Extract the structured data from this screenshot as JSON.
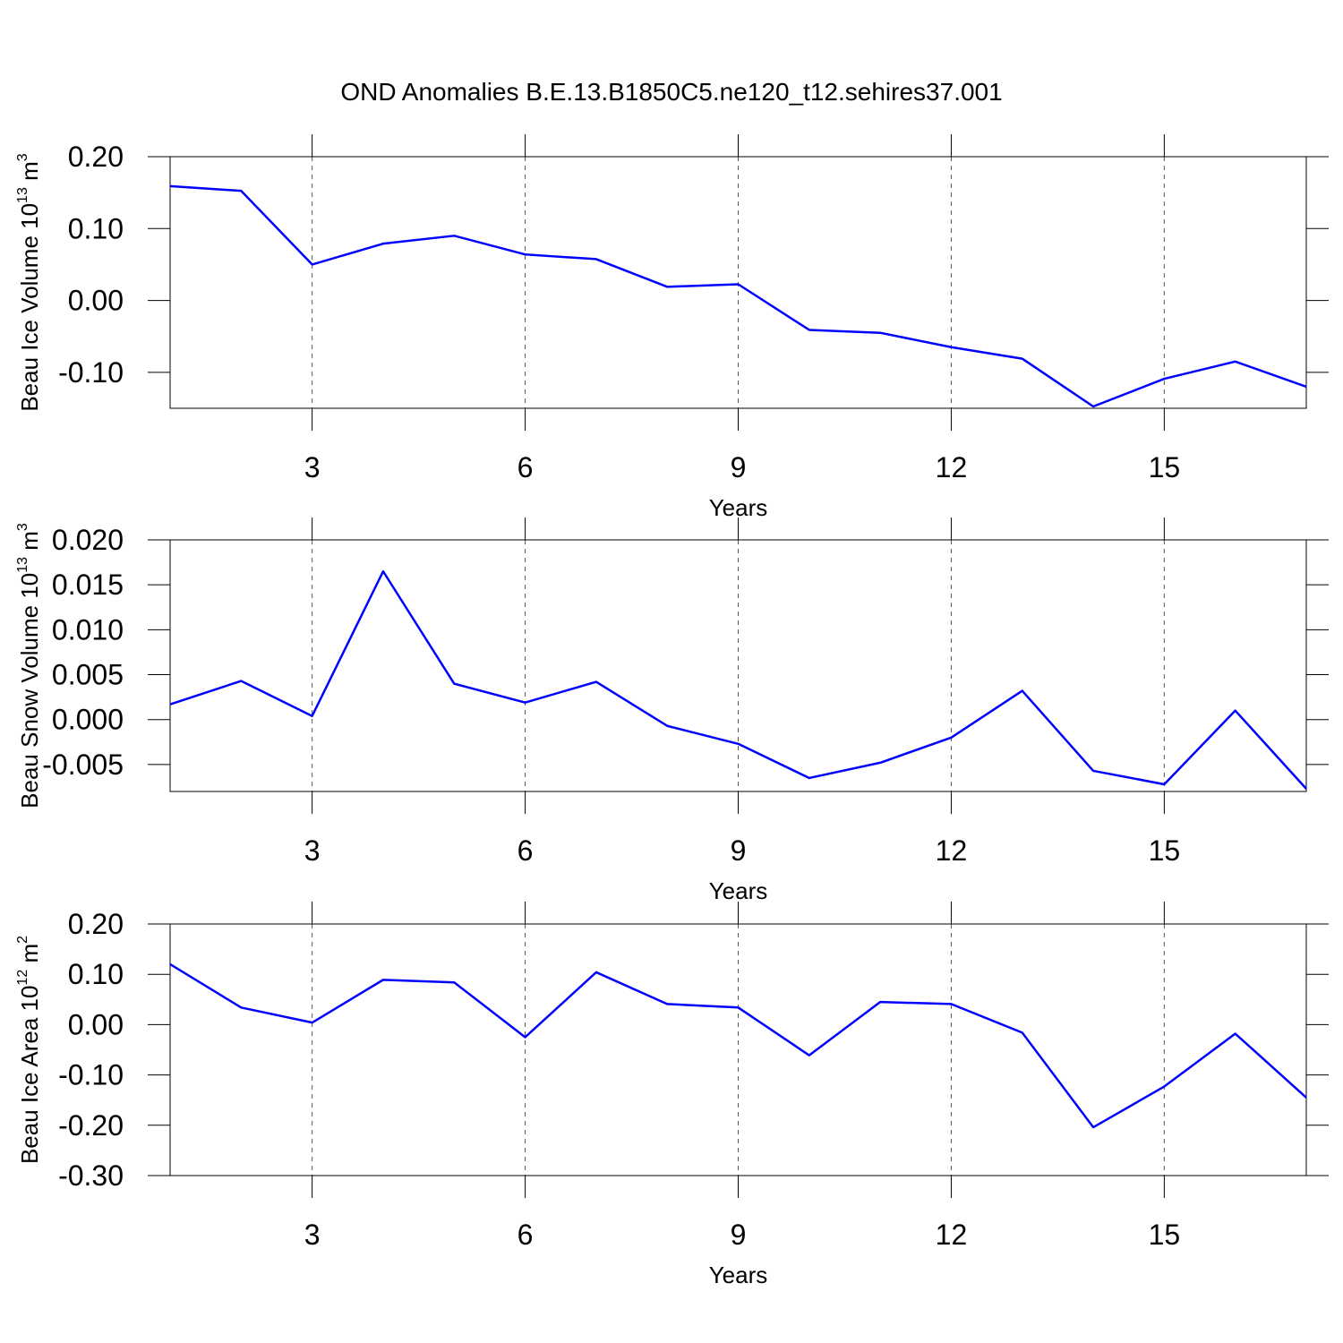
{
  "title": "OND Anomalies B.E.13.B1850C5.ne120_t12.sehires37.001",
  "chart_data": [
    {
      "type": "line",
      "xlabel": "Years",
      "ylabel_parts": [
        "Beau Ice Volume 10",
        "13",
        " m",
        "3"
      ],
      "x": [
        1,
        2,
        3,
        4,
        5,
        6,
        7,
        8,
        9,
        10,
        11,
        12,
        13,
        14,
        15,
        16,
        17
      ],
      "series": [
        {
          "color": "#0000ff",
          "values": [
            0.159,
            0.1525,
            0.05,
            0.079,
            0.09,
            0.064,
            0.0575,
            0.019,
            0.0225,
            -0.041,
            -0.045,
            -0.065,
            -0.081,
            -0.1475,
            -0.109,
            -0.085,
            -0.12
          ]
        }
      ],
      "xlim": [
        1,
        17
      ],
      "ylim": [
        -0.15,
        0.2
      ],
      "xticks": [
        3,
        6,
        9,
        12,
        15
      ],
      "yticks": [
        {
          "value": -0.1,
          "label": "-0.10"
        },
        {
          "value": 0,
          "label": "0.00"
        },
        {
          "value": 0.1,
          "label": "0.10"
        },
        {
          "value": 0.2,
          "label": "0.20"
        }
      ],
      "grid": "x"
    },
    {
      "type": "line",
      "xlabel": "Years",
      "ylabel_parts": [
        "Beau Snow Volume 10",
        "13",
        " m",
        "3"
      ],
      "x": [
        1,
        2,
        3,
        4,
        5,
        6,
        7,
        8,
        9,
        10,
        11,
        12,
        13,
        14,
        15,
        16,
        17
      ],
      "series": [
        {
          "color": "#0000ff",
          "values": [
            0.0017,
            0.0043,
            0.0004,
            0.0165,
            0.004,
            0.0019,
            0.0042,
            -0.0007,
            -0.0027,
            -0.0065,
            -0.0048,
            -0.002,
            0.0032,
            -0.0057,
            -0.0072,
            0.001,
            -0.0077
          ]
        }
      ],
      "xlim": [
        1,
        17
      ],
      "ylim": [
        -0.008,
        0.02
      ],
      "xticks": [
        3,
        6,
        9,
        12,
        15
      ],
      "yticks": [
        {
          "value": -0.005,
          "label": "-0.005"
        },
        {
          "value": 0,
          "label": "0.000"
        },
        {
          "value": 0.005,
          "label": "0.005"
        },
        {
          "value": 0.01,
          "label": "0.010"
        },
        {
          "value": 0.015,
          "label": "0.015"
        },
        {
          "value": 0.02,
          "label": "0.020"
        }
      ],
      "grid": "x"
    },
    {
      "type": "line",
      "xlabel": "Years",
      "ylabel_parts": [
        "Beau Ice Area 10",
        "12",
        " m",
        "2"
      ],
      "x": [
        1,
        2,
        3,
        4,
        5,
        6,
        7,
        8,
        9,
        10,
        11,
        12,
        13,
        14,
        15,
        16,
        17
      ],
      "series": [
        {
          "color": "#0000ff",
          "values": [
            0.12,
            0.034,
            0.004,
            0.089,
            0.084,
            -0.025,
            0.104,
            0.041,
            0.034,
            -0.061,
            0.045,
            0.041,
            -0.016,
            -0.204,
            -0.123,
            -0.018,
            -0.145
          ]
        }
      ],
      "xlim": [
        1,
        17
      ],
      "ylim": [
        -0.3,
        0.2
      ],
      "xticks": [
        3,
        6,
        9,
        12,
        15
      ],
      "yticks": [
        {
          "value": -0.3,
          "label": "-0.30"
        },
        {
          "value": -0.2,
          "label": "-0.20"
        },
        {
          "value": -0.1,
          "label": "-0.10"
        },
        {
          "value": 0,
          "label": "0.00"
        },
        {
          "value": 0.1,
          "label": "0.10"
        },
        {
          "value": 0.2,
          "label": "0.20"
        }
      ],
      "grid": "x"
    }
  ]
}
